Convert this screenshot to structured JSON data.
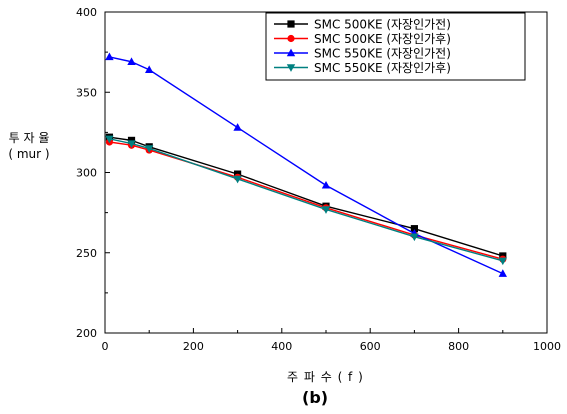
{
  "chart_data": {
    "type": "line",
    "title": "",
    "xlabel": "주 파 수 ( f )",
    "ylabel_line1": "투 자 율",
    "ylabel_line2": "( mur )",
    "sublabel": "(b)",
    "xlim": [
      0,
      1000
    ],
    "ylim": [
      200,
      400
    ],
    "x_ticks": [
      0,
      200,
      400,
      600,
      800,
      1000
    ],
    "y_ticks": [
      200,
      250,
      300,
      350,
      400
    ],
    "grid": false,
    "legend_position": "top-right",
    "series": [
      {
        "name": "SMC 500KE  (자장인가전)",
        "color": "#000000",
        "marker": "square",
        "x": [
          10,
          60,
          100,
          300,
          500,
          700,
          900
        ],
        "y": [
          322,
          320,
          316,
          299,
          279,
          265,
          248
        ]
      },
      {
        "name": "SMC 500KE  (자장인가후)",
        "color": "#ff0000",
        "marker": "circle",
        "x": [
          10,
          60,
          100,
          300,
          500,
          700,
          900
        ],
        "y": [
          319,
          317,
          314,
          297,
          278,
          261,
          246
        ]
      },
      {
        "name": "SMC 550KE  (자장인가전)",
        "color": "#0000ff",
        "marker": "triangle-up",
        "x": [
          10,
          60,
          100,
          300,
          500,
          700,
          900
        ],
        "y": [
          372,
          369,
          364,
          328,
          292,
          262,
          237
        ]
      },
      {
        "name": "SMC 550KE  (자장인가후)",
        "color": "#008080",
        "marker": "triangle-down",
        "x": [
          10,
          60,
          100,
          300,
          500,
          700,
          900
        ],
        "y": [
          321,
          318,
          315,
          296,
          277,
          260,
          245
        ]
      }
    ]
  }
}
